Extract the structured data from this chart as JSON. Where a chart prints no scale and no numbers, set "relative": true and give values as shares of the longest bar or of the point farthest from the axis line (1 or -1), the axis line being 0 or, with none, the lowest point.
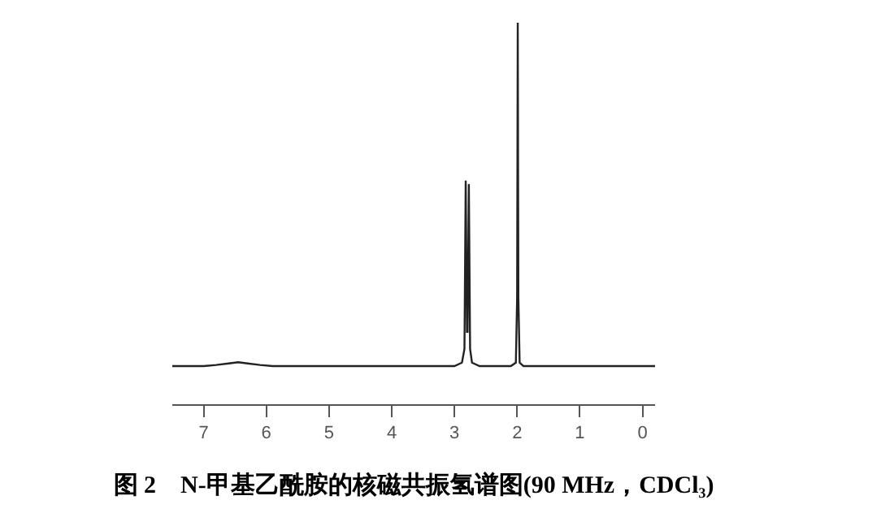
{
  "chart_data": {
    "type": "line",
    "relative": true,
    "title": "图 2　N-甲基乙酰胺的核磁共振氢谱图(90 MHz，CDCl₃)",
    "x": [
      7.5,
      7.0,
      6.8,
      6.6,
      6.45,
      6.3,
      6.1,
      5.9,
      3.0,
      2.88,
      2.84,
      2.82,
      2.8,
      2.79,
      2.77,
      2.75,
      2.72,
      2.6,
      2.1,
      2.02,
      2.0,
      1.99,
      1.98,
      1.96,
      1.9,
      -0.2
    ],
    "series": [
      {
        "color": "#222222",
        "values": [
          0.1,
          0.1,
          0.103,
          0.107,
          0.11,
          0.107,
          0.103,
          0.1,
          0.1,
          0.109,
          0.145,
          0.586,
          0.19,
          0.19,
          0.577,
          0.145,
          0.109,
          0.1,
          0.1,
          0.109,
          0.28,
          1,
          0.28,
          0.109,
          0.1,
          0.1
        ]
      }
    ],
    "xlim": [
      7.5,
      -0.2
    ],
    "xticks": [
      7,
      6,
      5,
      4,
      3,
      2,
      1,
      0
    ],
    "tick_labels": "x",
    "grid": false,
    "legend": false
  }
}
